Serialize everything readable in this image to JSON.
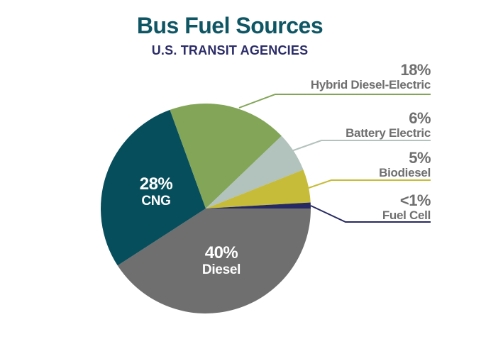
{
  "header": {
    "title": "Bus Fuel Sources",
    "subtitle": "U.S. TRANSIT AGENCIES"
  },
  "chart_data": {
    "type": "pie",
    "title": "Bus Fuel Sources",
    "subtitle": "U.S. TRANSIT AGENCIES",
    "unit": "%",
    "order": "clockwise-from-3-oclock",
    "legend_position": "right-callouts",
    "text_colors": {
      "title": "#0F5665",
      "subtitle": "#2B2C68",
      "callout_text": "#6F6F6F",
      "inside_label_text": "#FFFFFF"
    },
    "slices": [
      {
        "label": "Diesel",
        "pct_label": "40%",
        "value": 40,
        "color": "#6F6F6F",
        "label_placement": "inside"
      },
      {
        "label": "CNG",
        "pct_label": "28%",
        "value": 28,
        "color": "#074E5C",
        "label_placement": "inside"
      },
      {
        "label": "Hybrid Diesel-Electric",
        "pct_label": "18%",
        "value": 18,
        "color": "#82A557",
        "label_placement": "callout"
      },
      {
        "label": "Battery Electric",
        "pct_label": "6%",
        "value": 6,
        "color": "#B2C2BD",
        "label_placement": "callout"
      },
      {
        "label": "Biodiesel",
        "pct_label": "5%",
        "value": 5,
        "color": "#C6BC39",
        "label_placement": "callout"
      },
      {
        "label": "Fuel Cell",
        "pct_label": "<1%",
        "value": 0.9,
        "color": "#272A62",
        "label_placement": "callout"
      }
    ]
  }
}
